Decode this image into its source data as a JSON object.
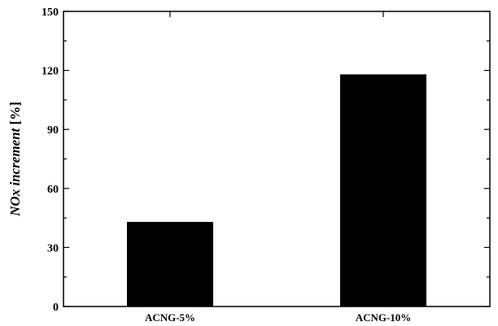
{
  "chart_data": {
    "type": "bar",
    "categories": [
      "ACNG-5%",
      "ACNG-10%"
    ],
    "values": [
      43,
      118
    ],
    "title": "",
    "xlabel": "",
    "ylabel": {
      "italic": "NOx increment",
      "unit": " [%]"
    },
    "ylim": [
      0,
      150
    ],
    "yticks": [
      "0",
      "30",
      "60",
      "90",
      "120",
      "150"
    ],
    "yticks_values": [
      0,
      30,
      60,
      90,
      120,
      150
    ],
    "grid": false,
    "bar_color": "#000000"
  }
}
